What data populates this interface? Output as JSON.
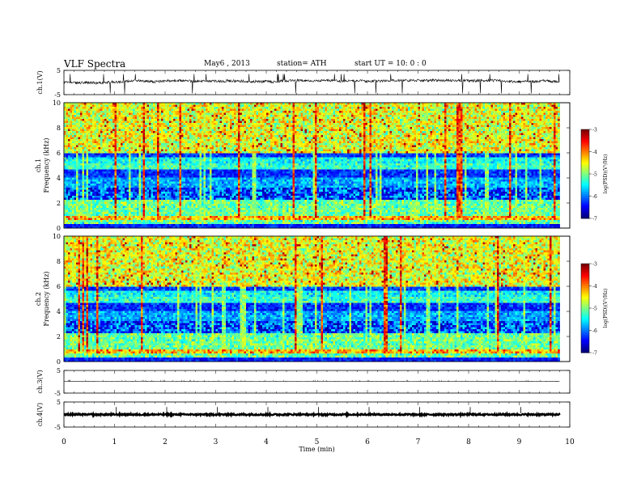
{
  "header": {
    "title": "VLF  Spectra",
    "date": "May6  , 2013",
    "station": "station= ATH",
    "start": "start  UT  =    10: 0  : 0"
  },
  "chart_data": [
    {
      "type": "line",
      "name": "ch1",
      "ylabel": "ch.1(V)",
      "ylim": [
        -5,
        5
      ],
      "yticks": [
        "5",
        "-5"
      ],
      "baseline": 0,
      "noise": 0.6
    },
    {
      "type": "heatmap",
      "name": "ch1-spectrogram",
      "ylabel": "Frequency  (kHz)",
      "ylabel_channel": "ch.1",
      "ylim": [
        0,
        10
      ],
      "yticks": [
        "0",
        "2",
        "4",
        "6",
        "8",
        "10"
      ],
      "colorbar": {
        "label": "log(PSD)(V²/Hz)",
        "range": [
          -7,
          -3
        ],
        "ticks": [
          "-3",
          "-4",
          "-5",
          "-6",
          "-7"
        ]
      }
    },
    {
      "type": "heatmap",
      "name": "ch2-spectrogram",
      "ylabel": "Frequency  (kHz)",
      "ylabel_channel": "ch.2",
      "ylim": [
        0,
        10
      ],
      "yticks": [
        "0",
        "2",
        "4",
        "6",
        "8",
        "10"
      ],
      "colorbar": {
        "label": "log(PSD)(V²/Hz)",
        "range": [
          -7,
          -3
        ],
        "ticks": [
          "-3",
          "-4",
          "-5",
          "-6",
          "-7"
        ]
      }
    },
    {
      "type": "line",
      "name": "ch3",
      "ylabel": "ch.3(V)",
      "ylim": [
        -5,
        5
      ],
      "yticks": [
        "5",
        "-5"
      ],
      "baseline": 0.2,
      "noise": 0.05
    },
    {
      "type": "line",
      "name": "ch4",
      "ylabel": "ch.4(V)",
      "ylim": [
        -5,
        5
      ],
      "yticks": [
        "5",
        "-5"
      ],
      "baseline": 0,
      "noise": 0.3
    }
  ],
  "xaxis": {
    "label": "Time  (min)",
    "xlim": [
      0,
      10
    ],
    "data_end": 9.8,
    "ticks": [
      "0",
      "1",
      "2",
      "3",
      "4",
      "5",
      "6",
      "7",
      "8",
      "9",
      "10"
    ]
  }
}
